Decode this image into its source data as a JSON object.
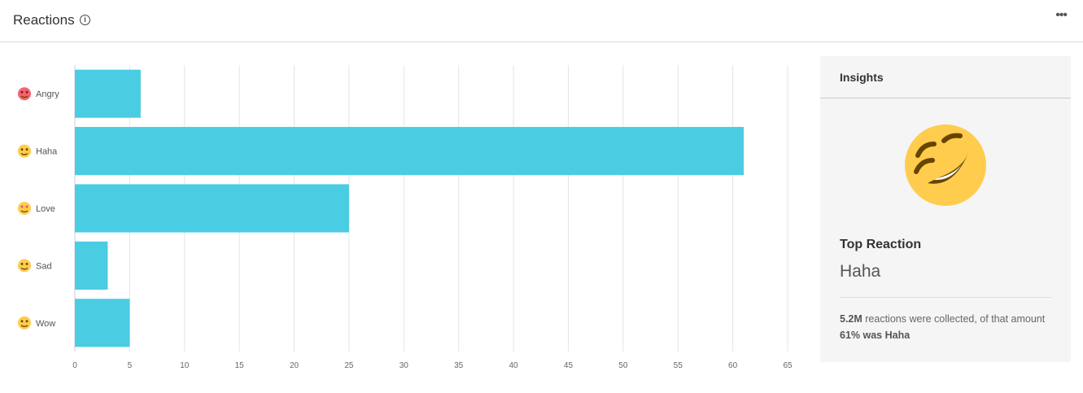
{
  "header": {
    "title": "Reactions",
    "info_icon": "info-icon",
    "more_icon": "more-horizontal-icon"
  },
  "chart_data": {
    "type": "bar",
    "orientation": "horizontal",
    "categories": [
      "Angry",
      "Haha",
      "Love",
      "Sad",
      "Wow"
    ],
    "category_icons": [
      "angry-face-emoji",
      "rolling-laughing-emoji",
      "heart-eyes-emoji",
      "sad-tear-emoji",
      "surprised-face-emoji"
    ],
    "values": [
      6,
      61,
      25,
      3,
      5
    ],
    "xlim": [
      0,
      65
    ],
    "xticks": [
      "0",
      "5",
      "10",
      "15",
      "20",
      "25",
      "30",
      "35",
      "40",
      "45",
      "50",
      "55",
      "60",
      "65"
    ],
    "grid": true,
    "bar_color": "#4ACCE3"
  },
  "insights": {
    "title": "Insights",
    "top_label": "Top Reaction",
    "top_value": "Haha",
    "summary_total": "5.2M",
    "summary_mid": " reactions were collected, of that amount ",
    "summary_share": "61% was Haha"
  }
}
